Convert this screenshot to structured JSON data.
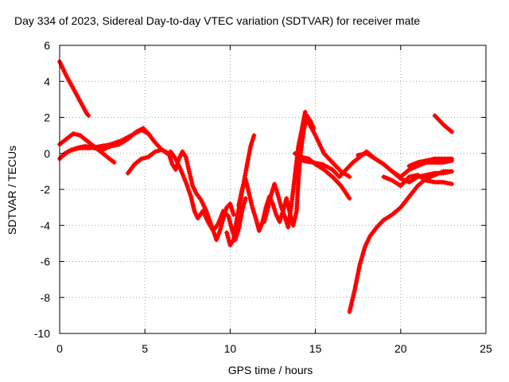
{
  "chart_data": {
    "type": "scatter",
    "title": "Day 334 of 2023, Sidereal Day-to-day VTEC variation (SDTVAR) for receiver mate",
    "xlabel": "GPS time / hours",
    "ylabel": "SDTVAR / TECUs",
    "xlim": [
      0,
      25
    ],
    "ylim": [
      -10,
      6
    ],
    "xticks": [
      0,
      5,
      10,
      15,
      20,
      25
    ],
    "yticks": [
      -10,
      -8,
      -6,
      -4,
      -2,
      0,
      2,
      4,
      6
    ],
    "grid": true,
    "marker": "plus",
    "colors": {
      "series": "#ff0000",
      "frame": "#000000",
      "grid": "#a0a0a0"
    },
    "series": [
      {
        "points": [
          [
            0.0,
            5.1
          ],
          [
            0.4,
            4.3
          ],
          [
            0.8,
            3.6
          ],
          [
            1.2,
            2.9
          ],
          [
            1.6,
            2.2
          ],
          [
            1.7,
            2.1
          ]
        ]
      },
      {
        "points": [
          [
            0.0,
            0.5
          ],
          [
            0.4,
            0.8
          ],
          [
            0.8,
            1.1
          ],
          [
            1.2,
            1.0
          ],
          [
            1.6,
            0.7
          ],
          [
            2.0,
            0.4
          ],
          [
            2.4,
            0.1
          ],
          [
            2.8,
            -0.2
          ],
          [
            3.2,
            -0.5
          ]
        ]
      },
      {
        "points": [
          [
            0.0,
            -0.3
          ],
          [
            0.3,
            0.0
          ],
          [
            0.7,
            0.2
          ],
          [
            1.2,
            0.3
          ],
          [
            1.8,
            0.3
          ],
          [
            2.4,
            0.4
          ],
          [
            3.0,
            0.5
          ],
          [
            3.6,
            0.7
          ],
          [
            4.2,
            1.0
          ],
          [
            4.8,
            1.3
          ],
          [
            5.2,
            1.1
          ],
          [
            5.6,
            0.6
          ],
          [
            6.0,
            0.2
          ],
          [
            6.3,
            0.0
          ]
        ]
      },
      {
        "points": [
          [
            0.1,
            -0.2
          ],
          [
            0.5,
            0.1
          ],
          [
            1.0,
            0.3
          ],
          [
            1.5,
            0.4
          ],
          [
            2.0,
            0.3
          ],
          [
            2.5,
            0.2
          ],
          [
            3.0,
            0.4
          ],
          [
            3.5,
            0.5
          ],
          [
            4.0,
            0.8
          ],
          [
            4.5,
            1.2
          ],
          [
            4.9,
            1.4
          ],
          [
            5.3,
            1.0
          ]
        ]
      },
      {
        "points": [
          [
            4.0,
            -1.1
          ],
          [
            4.4,
            -0.6
          ],
          [
            4.8,
            -0.3
          ],
          [
            5.2,
            -0.2
          ],
          [
            5.6,
            0.1
          ],
          [
            6.0,
            0.2
          ],
          [
            6.4,
            0.0
          ],
          [
            6.6,
            -0.6
          ],
          [
            6.8,
            -0.9
          ],
          [
            7.0,
            -0.3
          ],
          [
            7.2,
            0.1
          ],
          [
            7.4,
            -0.2
          ],
          [
            7.6,
            -1.0
          ],
          [
            7.8,
            -1.8
          ],
          [
            8.0,
            -2.2
          ],
          [
            8.3,
            -2.6
          ],
          [
            8.6,
            -3.2
          ],
          [
            8.9,
            -4.0
          ],
          [
            9.2,
            -4.8
          ],
          [
            9.4,
            -4.3
          ],
          [
            9.6,
            -3.6
          ],
          [
            9.8,
            -3.0
          ],
          [
            10.0,
            -2.8
          ],
          [
            10.2,
            -3.4
          ]
        ]
      },
      {
        "points": [
          [
            6.5,
            0.1
          ],
          [
            6.8,
            -0.3
          ],
          [
            7.1,
            -0.9
          ],
          [
            7.4,
            -1.6
          ],
          [
            7.7,
            -2.4
          ],
          [
            7.9,
            -3.2
          ],
          [
            8.1,
            -3.6
          ],
          [
            8.4,
            -3.2
          ],
          [
            8.7,
            -3.8
          ],
          [
            9.0,
            -4.3
          ],
          [
            9.3,
            -3.9
          ],
          [
            9.6,
            -3.2
          ],
          [
            9.9,
            -3.5
          ],
          [
            10.1,
            -4.2
          ],
          [
            10.3,
            -4.8
          ],
          [
            10.5,
            -4.2
          ],
          [
            10.7,
            -3.2
          ],
          [
            10.9,
            -2.5
          ]
        ]
      },
      {
        "points": [
          [
            9.8,
            -4.4
          ],
          [
            10.0,
            -5.1
          ],
          [
            10.2,
            -4.8
          ],
          [
            10.4,
            -3.6
          ],
          [
            10.6,
            -2.6
          ],
          [
            10.8,
            -1.6
          ],
          [
            11.0,
            -0.6
          ],
          [
            11.2,
            0.4
          ],
          [
            11.4,
            1.0
          ]
        ]
      },
      {
        "points": [
          [
            10.5,
            -2.9
          ],
          [
            10.7,
            -2.0
          ],
          [
            10.9,
            -1.4
          ],
          [
            11.1,
            -2.2
          ],
          [
            11.3,
            -3.0
          ],
          [
            11.5,
            -3.6
          ],
          [
            11.7,
            -4.3
          ],
          [
            11.9,
            -3.8
          ],
          [
            12.1,
            -3.0
          ],
          [
            12.3,
            -2.4
          ],
          [
            12.5,
            -2.8
          ],
          [
            12.7,
            -3.4
          ],
          [
            12.9,
            -3.8
          ],
          [
            13.1,
            -3.2
          ],
          [
            13.3,
            -2.5
          ],
          [
            13.5,
            -3.3
          ],
          [
            13.7,
            -4.0
          ],
          [
            13.9,
            -3.2
          ],
          [
            14.0,
            -1.5
          ],
          [
            14.1,
            -0.2
          ],
          [
            14.3,
            1.2
          ],
          [
            14.5,
            2.1
          ],
          [
            14.7,
            1.8
          ],
          [
            14.9,
            1.4
          ]
        ]
      },
      {
        "points": [
          [
            12.0,
            -3.8
          ],
          [
            12.2,
            -3.1
          ],
          [
            12.4,
            -2.3
          ],
          [
            12.6,
            -1.7
          ],
          [
            12.8,
            -2.3
          ],
          [
            13.0,
            -3.0
          ],
          [
            13.2,
            -3.5
          ],
          [
            13.4,
            -4.1
          ],
          [
            13.6,
            -2.8
          ],
          [
            13.8,
            -1.2
          ],
          [
            14.0,
            0.4
          ],
          [
            14.2,
            1.3
          ],
          [
            14.4,
            2.3
          ]
        ]
      },
      {
        "points": [
          [
            13.8,
            0.0
          ],
          [
            14.2,
            -0.2
          ],
          [
            14.6,
            -0.3
          ],
          [
            15.0,
            -0.6
          ],
          [
            15.5,
            -0.9
          ],
          [
            16.0,
            -1.3
          ],
          [
            16.5,
            -1.8
          ],
          [
            17.0,
            -2.5
          ]
        ]
      },
      {
        "points": [
          [
            14.5,
            1.9
          ],
          [
            15.0,
            1.0
          ],
          [
            15.5,
            0.0
          ],
          [
            16.0,
            -0.5
          ],
          [
            16.5,
            -1.0
          ],
          [
            17.0,
            -1.3
          ]
        ]
      },
      {
        "points": [
          [
            14.2,
            -0.4
          ],
          [
            14.8,
            -0.5
          ],
          [
            15.4,
            -0.6
          ],
          [
            16.0,
            -0.9
          ],
          [
            16.4,
            -1.3
          ],
          [
            16.8,
            -0.9
          ],
          [
            17.2,
            -0.5
          ],
          [
            17.6,
            -0.2
          ],
          [
            18.0,
            0.1
          ],
          [
            18.5,
            -0.3
          ],
          [
            19.0,
            -0.6
          ],
          [
            19.5,
            -1.0
          ],
          [
            20.0,
            -1.4
          ],
          [
            20.5,
            -1.6
          ],
          [
            21.0,
            -1.3
          ],
          [
            21.5,
            -1.2
          ],
          [
            22.0,
            -1.1
          ],
          [
            22.5,
            -1.1
          ],
          [
            23.0,
            -1.0
          ]
        ]
      },
      {
        "points": [
          [
            17.5,
            -0.1
          ],
          [
            18.0,
            0.0
          ],
          [
            18.5,
            -0.3
          ],
          [
            19.0,
            -0.6
          ],
          [
            19.5,
            -1.0
          ],
          [
            20.0,
            -1.3
          ],
          [
            20.5,
            -0.9
          ],
          [
            21.0,
            -0.7
          ],
          [
            21.5,
            -0.5
          ],
          [
            22.0,
            -0.5
          ],
          [
            22.5,
            -0.5
          ],
          [
            23.0,
            -0.4
          ]
        ]
      },
      {
        "points": [
          [
            19.0,
            -1.3
          ],
          [
            19.5,
            -1.5
          ],
          [
            20.0,
            -1.8
          ],
          [
            20.5,
            -1.3
          ],
          [
            21.0,
            -1.2
          ],
          [
            21.5,
            -1.5
          ],
          [
            22.0,
            -1.6
          ],
          [
            22.5,
            -1.6
          ],
          [
            23.0,
            -1.7
          ]
        ]
      },
      {
        "points": [
          [
            17.0,
            -8.8
          ],
          [
            17.3,
            -7.6
          ],
          [
            17.6,
            -6.2
          ],
          [
            17.9,
            -5.2
          ],
          [
            18.2,
            -4.6
          ],
          [
            18.6,
            -4.1
          ],
          [
            19.0,
            -3.7
          ],
          [
            19.5,
            -3.4
          ],
          [
            20.0,
            -3.0
          ],
          [
            20.5,
            -2.4
          ],
          [
            21.0,
            -1.8
          ],
          [
            21.5,
            -1.4
          ],
          [
            22.0,
            -1.2
          ],
          [
            22.5,
            -1.0
          ],
          [
            23.0,
            -1.0
          ]
        ]
      },
      {
        "points": [
          [
            22.0,
            2.1
          ],
          [
            22.5,
            1.6
          ],
          [
            23.0,
            1.2
          ]
        ]
      },
      {
        "points": [
          [
            20.5,
            -0.7
          ],
          [
            21.0,
            -0.5
          ],
          [
            21.5,
            -0.4
          ],
          [
            22.0,
            -0.3
          ],
          [
            22.5,
            -0.3
          ],
          [
            23.0,
            -0.3
          ]
        ]
      }
    ]
  }
}
